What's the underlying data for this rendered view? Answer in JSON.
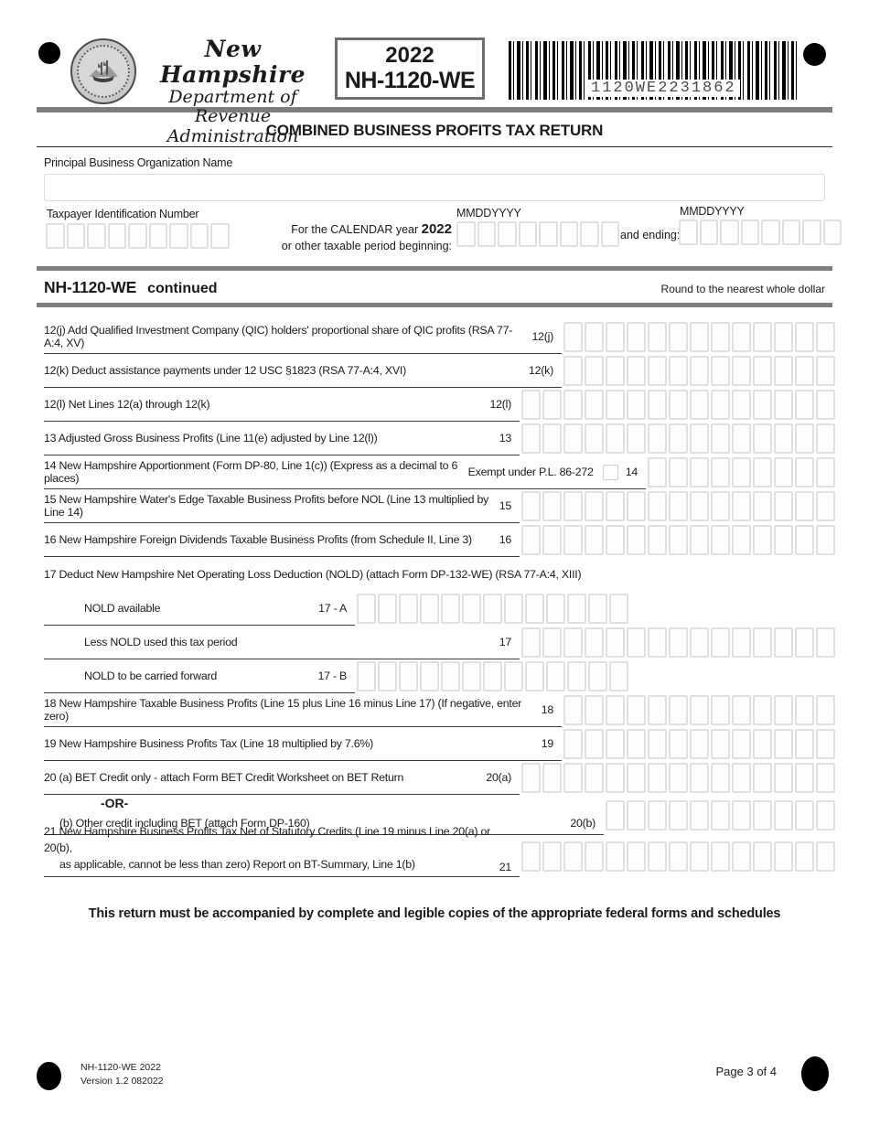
{
  "header": {
    "agency_name": "New Hampshire",
    "agency_dept_line1": "Department of",
    "agency_dept_line2": "Revenue Administration",
    "form_year": "2022",
    "form_code": "NH-1120-WE",
    "barcode_value": "1120WE2231862",
    "title": "COMBINED BUSINESS PROFITS TAX RETURN"
  },
  "top_fields": {
    "org_name_label": "Principal Business Organization Name",
    "org_name_value": "",
    "tin_label": "Taxpayer Identification Number",
    "tin_boxes": 9,
    "calendar_line1_prefix": "For the CALENDAR year",
    "calendar_year": "2022",
    "calendar_line2": "or other taxable period beginning:",
    "date_format_label_1": "MMDDYYYY",
    "date_format_label_2": "MMDDYYYY",
    "and_ending_label": "and ending:",
    "date_boxes": 8
  },
  "section": {
    "name": "NH-1120-WE",
    "continued": "continued",
    "round_note": "Round to the nearest whole dollar"
  },
  "form": {
    "rows": [
      {
        "label": "12(j)  Add Qualified Investment Company (QIC) holders' proportional share of QIC profits  (RSA 77-A:4, XV)",
        "ref": "12(j)",
        "boxes": 13
      },
      {
        "label": "12(k)   Deduct assistance payments under 12 USC §1823  (RSA 77-A:4, XVI)",
        "ref": "12(k)",
        "boxes": 13
      },
      {
        "label": "12(l)  Net Lines 12(a) through 12(k)",
        "ref": "12(l)",
        "boxes": 15
      },
      {
        "label": "13  Adjusted Gross Business Profits (Line 11(e) adjusted by Line 12(l))",
        "ref": "13",
        "boxes": 15
      },
      {
        "label": "14  New Hampshire Apportionment (Form DP-80, Line 1(c))  (Express as a decimal to 6 places)",
        "exempt_label": "Exempt under P.L. 86-272",
        "checkbox": true,
        "ref": "14",
        "boxes": 9
      },
      {
        "label": "15  New Hampshire Water's Edge Taxable Business Profits before NOL (Line 13 multiplied by Line 14)",
        "ref": "15",
        "boxes": 15
      },
      {
        "label": "16  New Hampshire Foreign Dividends Taxable Business Profits (from Schedule II, Line 3)",
        "ref": "16",
        "boxes": 15
      },
      {
        "label": "17  Deduct New Hampshire Net Operating Loss Deduction (NOLD) (attach Form DP-132-WE) (RSA 77-A:4, XIII)",
        "header": true
      },
      {
        "label": "NOLD available",
        "ref": "17 - A",
        "boxes": 13,
        "indent": 1,
        "trail": 226
      },
      {
        "label": "Less NOLD used this tax period",
        "ref": "17",
        "boxes": 15,
        "indent": 1
      },
      {
        "label": "NOLD to be carried forward",
        "ref": "17 - B",
        "boxes": 13,
        "indent": 1,
        "trail": 226
      },
      {
        "label": "18  New Hampshire Taxable Business Profits (Line 15 plus Line 16 minus Line 17) (If negative, enter zero)",
        "ref": "18",
        "boxes": 13
      },
      {
        "label": "19  New Hampshire Business Profits Tax (Line 18 multiplied by 7.6%)",
        "ref": "19",
        "boxes": 13
      },
      {
        "label": "20  (a)   BET Credit only - attach Form BET Credit Worksheet on BET Return",
        "ref": "20(a)",
        "boxes": 15
      },
      {
        "label": "(b)   Other credit including BET  (attach Form DP-160)",
        "or_above": "-OR-",
        "ref": "20(b)",
        "boxes": 11,
        "indent": 2
      },
      {
        "label": "21  New Hampshire Business Profits Tax Net of Statutory Credits (Line 19 minus Line 20(a) or 20(b),",
        "label2": "as applicable, cannot be less than zero) Report on BT-Summary, Line 1(b)",
        "ref": "21",
        "boxes": 15,
        "twoline": true
      }
    ],
    "statement": "This return must be accompanied by complete and legible copies of the appropriate federal forms and schedules"
  },
  "footer": {
    "form_version_line1": "NH-1120-WE  2022",
    "form_version_line2": "Version 1.2 082022",
    "page_label": "Page 3 of 4"
  }
}
